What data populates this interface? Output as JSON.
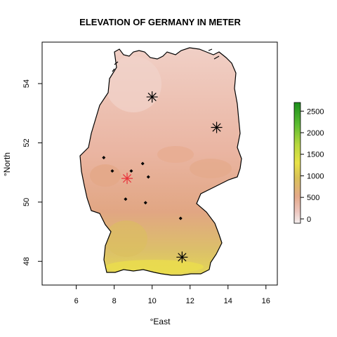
{
  "title": "ELEVATION OF GERMANY IN METER",
  "xlabel": "°East",
  "ylabel": "°North",
  "x_axis": {
    "range": [
      4.2,
      16.6
    ],
    "ticks": [
      6,
      8,
      10,
      12,
      14,
      16
    ]
  },
  "y_axis": {
    "range": [
      47.2,
      55.4
    ],
    "ticks": [
      48,
      50,
      52,
      54
    ]
  },
  "legend": {
    "title": "",
    "range": [
      -100,
      2700
    ],
    "ticks": [
      0,
      500,
      1000,
      1500,
      2000,
      2500
    ],
    "colors": [
      "#f2e6e6",
      "#ebb5a8",
      "#e1a882",
      "#d9bf56",
      "#e6e24a",
      "#9ed23f",
      "#44b22f",
      "#1a8f1a"
    ]
  },
  "colors": {
    "lowland": "#efc1b6",
    "midland": "#e2a687",
    "upland": "#d9c36b",
    "alps": "#e6e04c",
    "border": "#000000",
    "highlight_marker": "#e8313a"
  },
  "cities_black": [
    {
      "lon": 10.0,
      "lat": 53.55
    },
    {
      "lon": 13.4,
      "lat": 52.52
    },
    {
      "lon": 11.58,
      "lat": 48.14
    }
  ],
  "city_red": {
    "lon": 8.68,
    "lat": 50.8
  },
  "small_points": [
    {
      "lon": 7.45,
      "lat": 51.5
    },
    {
      "lon": 7.9,
      "lat": 51.05
    },
    {
      "lon": 8.9,
      "lat": 51.05
    },
    {
      "lon": 9.5,
      "lat": 51.3
    },
    {
      "lon": 9.8,
      "lat": 50.85
    },
    {
      "lon": 8.6,
      "lat": 50.1
    },
    {
      "lon": 9.65,
      "lat": 49.98
    },
    {
      "lon": 11.5,
      "lat": 49.45
    }
  ]
}
